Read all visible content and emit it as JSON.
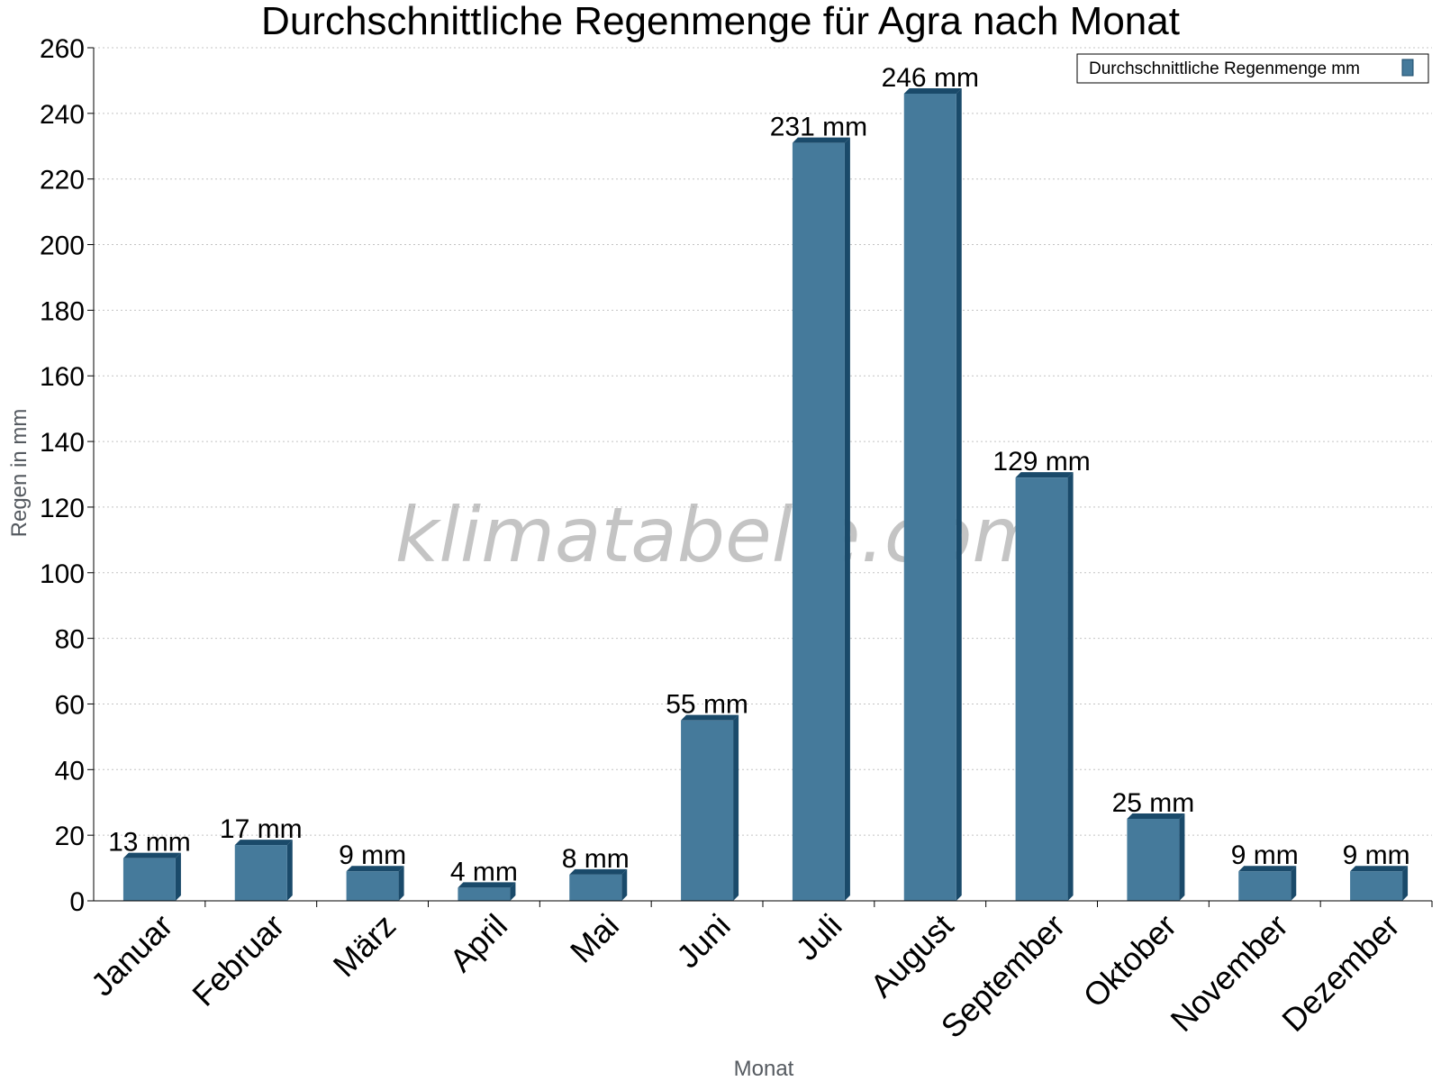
{
  "chart_data": {
    "type": "bar",
    "title": "Durchschnittliche Regenmenge für Agra nach Monat",
    "xlabel": "Monat",
    "ylabel": "Regen in mm",
    "ylim": [
      0,
      260
    ],
    "yticks": [
      0,
      20,
      40,
      60,
      80,
      100,
      120,
      140,
      160,
      180,
      200,
      220,
      240,
      260
    ],
    "grid": true,
    "legend_position": "top-right",
    "categories": [
      "Januar",
      "Februar",
      "März",
      "April",
      "Mai",
      "Juni",
      "Juli",
      "August",
      "September",
      "Oktober",
      "November",
      "Dezember"
    ],
    "series": [
      {
        "name": "Durchschnittliche Regenmenge mm",
        "values": [
          13,
          17,
          9,
          4,
          8,
          55,
          231,
          246,
          129,
          25,
          9,
          9
        ],
        "labels": [
          "13 mm",
          "17 mm",
          "9 mm",
          "4 mm",
          "8 mm",
          "55 mm",
          "231 mm",
          "246 mm",
          "129 mm",
          "25 mm",
          "9 mm",
          "9 mm"
        ],
        "color": "#457a9b",
        "side_color": "#1a4a6a"
      }
    ],
    "watermark": "klimatabelle.com"
  }
}
